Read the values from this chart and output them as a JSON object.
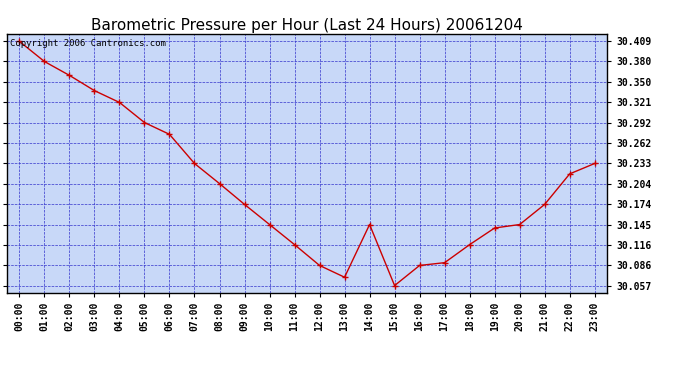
{
  "title": "Barometric Pressure per Hour (Last 24 Hours) 20061204",
  "copyright": "Copyright 2006 Cantronics.com",
  "hours": [
    "00:00",
    "01:00",
    "02:00",
    "03:00",
    "04:00",
    "05:00",
    "06:00",
    "07:00",
    "08:00",
    "09:00",
    "10:00",
    "11:00",
    "12:00",
    "13:00",
    "14:00",
    "15:00",
    "16:00",
    "17:00",
    "18:00",
    "19:00",
    "20:00",
    "21:00",
    "22:00",
    "23:00"
  ],
  "values": [
    30.409,
    30.38,
    30.36,
    30.338,
    30.321,
    30.292,
    30.275,
    30.233,
    30.204,
    30.174,
    30.145,
    30.116,
    30.086,
    30.069,
    30.145,
    30.057,
    30.086,
    30.09,
    30.116,
    30.14,
    30.145,
    30.174,
    30.218,
    30.233
  ],
  "line_color": "#cc0000",
  "marker_color": "#cc0000",
  "fig_bg_color": "#ffffff",
  "plot_bg_color": "#c8d8f8",
  "grid_color": "#3333cc",
  "title_color": "#000000",
  "ytick_labels": [
    30.409,
    30.38,
    30.35,
    30.321,
    30.292,
    30.262,
    30.233,
    30.204,
    30.174,
    30.145,
    30.116,
    30.086,
    30.057
  ],
  "ymin": 30.047,
  "ymax": 30.42,
  "title_fontsize": 11,
  "copyright_fontsize": 6.5,
  "tick_fontsize": 7,
  "figwidth": 6.9,
  "figheight": 3.75,
  "dpi": 100
}
